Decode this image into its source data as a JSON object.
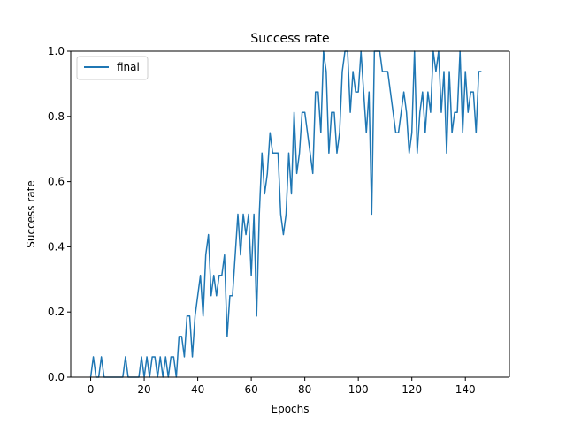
{
  "chart_data": {
    "type": "line",
    "title": "Success rate",
    "xlabel": "Epochs",
    "ylabel": "Success rate",
    "xlim": [
      -7.45,
      156.45
    ],
    "ylim": [
      0,
      1
    ],
    "xticks": [
      0,
      20,
      40,
      60,
      80,
      100,
      120,
      140
    ],
    "yticks": [
      0.0,
      0.2,
      0.4,
      0.6,
      0.8,
      1.0
    ],
    "xtick_labels": [
      "0",
      "20",
      "40",
      "60",
      "80",
      "100",
      "120",
      "140"
    ],
    "ytick_labels": [
      "0.0",
      "0.2",
      "0.4",
      "0.6",
      "0.8",
      "1.0"
    ],
    "grid": false,
    "legend_position": "top-left",
    "series": [
      {
        "name": "final",
        "color": "#1f77b4",
        "values": [
          0,
          0.0625,
          0,
          0,
          0.0625,
          0,
          0,
          0,
          0,
          0,
          0,
          0,
          0,
          0.0625,
          0,
          0,
          0,
          0,
          0,
          0.0625,
          0,
          0.0625,
          0,
          0.0625,
          0.0625,
          0,
          0.0625,
          0,
          0.0625,
          0,
          0.0625,
          0.0625,
          0,
          0.125,
          0.125,
          0.0625,
          0.1875,
          0.1875,
          0.0625,
          0.1875,
          0.25,
          0.3125,
          0.1875,
          0.375,
          0.4375,
          0.25,
          0.3125,
          0.25,
          0.3125,
          0.3125,
          0.375,
          0.125,
          0.25,
          0.25,
          0.375,
          0.5,
          0.375,
          0.5,
          0.4375,
          0.5,
          0.3125,
          0.5,
          0.1875,
          0.5,
          0.6875,
          0.5625,
          0.625,
          0.75,
          0.6875,
          0.6875,
          0.6875,
          0.5,
          0.4375,
          0.5,
          0.6875,
          0.5625,
          0.8125,
          0.625,
          0.6875,
          0.8125,
          0.8125,
          0.75,
          0.6875,
          0.625,
          0.875,
          0.875,
          0.75,
          1.0,
          0.9375,
          0.6875,
          0.8125,
          0.8125,
          0.6875,
          0.75,
          0.9375,
          1.0,
          1.0,
          0.8125,
          0.9375,
          0.875,
          0.875,
          1.0,
          0.875,
          0.75,
          0.875,
          0.5,
          1.0,
          1.0,
          1.0,
          0.9375,
          0.9375,
          0.9375,
          0.875,
          0.8125,
          0.75,
          0.75,
          0.8125,
          0.875,
          0.8125,
          0.6875,
          0.75,
          1.0,
          0.6875,
          0.8125,
          0.875,
          0.75,
          0.875,
          0.8125,
          1.0,
          0.9375,
          1.0,
          0.8125,
          0.9375,
          0.6875,
          0.9375,
          0.75,
          0.8125,
          0.8125,
          1.0,
          0.75,
          0.9375,
          0.8125,
          0.875,
          0.875,
          0.75,
          0.9375,
          0.9375
        ]
      }
    ]
  }
}
